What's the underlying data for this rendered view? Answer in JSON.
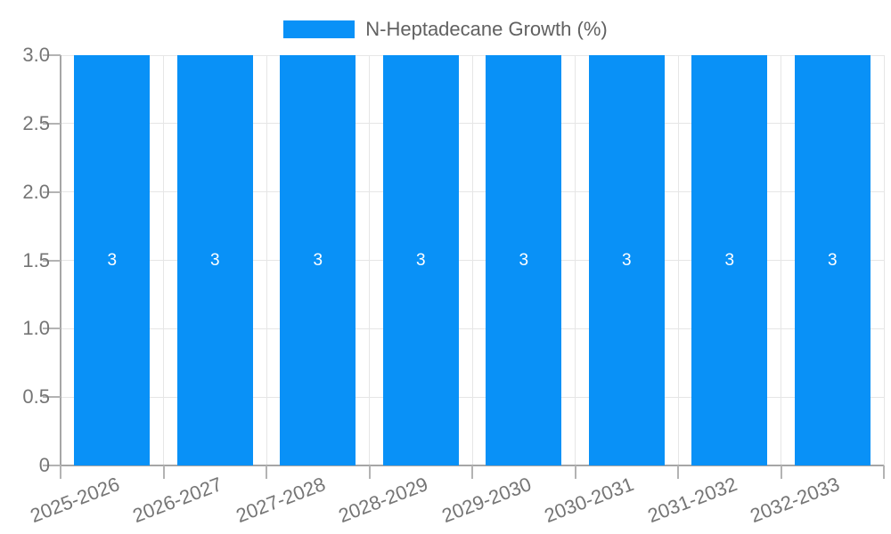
{
  "chart_data": {
    "type": "bar",
    "title": "",
    "legend": {
      "position": "top",
      "label": "N-Heptadecane Growth (%)"
    },
    "categories": [
      "2025-2026",
      "2026-2027",
      "2027-2028",
      "2028-2029",
      "2029-2030",
      "2030-2031",
      "2031-2032",
      "2032-2033"
    ],
    "series": [
      {
        "name": "N-Heptadecane Growth (%)",
        "values": [
          3,
          3,
          3,
          3,
          3,
          3,
          3,
          3
        ],
        "value_labels": [
          "3",
          "3",
          "3",
          "3",
          "3",
          "3",
          "3",
          "3"
        ]
      }
    ],
    "xlabel": "",
    "ylabel": "",
    "ylim": [
      0,
      3
    ],
    "ytick_values": [
      0,
      0.5,
      1,
      1.5,
      2,
      2.5,
      3
    ],
    "ytick_labels": [
      "0",
      "0.5",
      "1.0",
      "1.5",
      "2.0",
      "2.5",
      "3.0"
    ],
    "grid": true,
    "colors": {
      "bar": "#0991F7",
      "grid_line": "#e6e6e6",
      "axis_line": "#a6a6a6",
      "tick_mark": "#b3b3b3",
      "axis_text": "#757575",
      "legend_text": "#616161",
      "bar_label_text": "#ffffff",
      "background": "#ffffff"
    }
  }
}
